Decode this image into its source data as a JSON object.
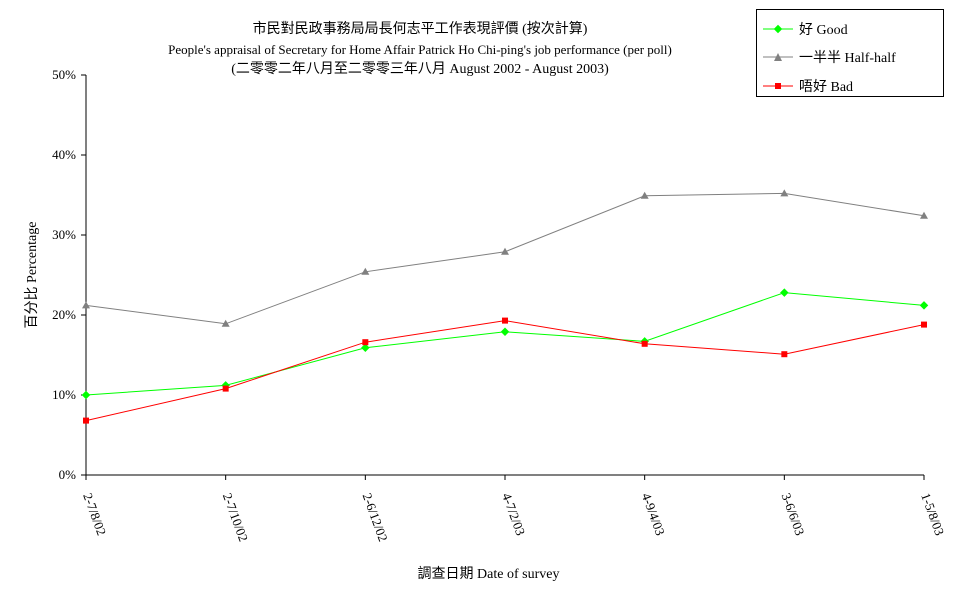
{
  "title_lines": [
    "市民對民政事務局局長何志平工作表現評價 (按次計算)",
    "People's appraisal of Secretary for Home Affair Patrick Ho Chi-ping's job performance (per poll)",
    "(二零零二年八月至二零零三年八月  August 2002 - August 2003)"
  ],
  "chart_data": {
    "type": "line",
    "title": "市民對民政事務局局長何志平工作表現評價 (按次計算)",
    "xlabel": "調查日期 Date of survey",
    "ylabel": "百分比  Percentage",
    "categories": [
      "2-7/8/02",
      "2-7/10/02",
      "2-6/12/02",
      "4-7/2/03",
      "4-9/4/03",
      "3-6/6/03",
      "1-5/8/03"
    ],
    "ylim": [
      0,
      50
    ],
    "yticks": [
      "0%",
      "10%",
      "20%",
      "30%",
      "40%",
      "50%"
    ],
    "grid": false,
    "legend_position": "top-right",
    "series": [
      {
        "name": "好  Good",
        "color": "#00ff00",
        "marker": "diamond",
        "values": [
          10,
          11.2,
          15.9,
          17.9,
          16.7,
          22.8,
          21.2
        ]
      },
      {
        "name": "一半半  Half-half",
        "color": "#808080",
        "marker": "triangle",
        "values": [
          21.2,
          18.9,
          25.4,
          27.9,
          34.9,
          35.2,
          32.4
        ]
      },
      {
        "name": "唔好  Bad",
        "color": "#ff0000",
        "marker": "square",
        "values": [
          6.8,
          10.8,
          16.6,
          19.3,
          16.4,
          15.1,
          18.8
        ]
      }
    ]
  }
}
